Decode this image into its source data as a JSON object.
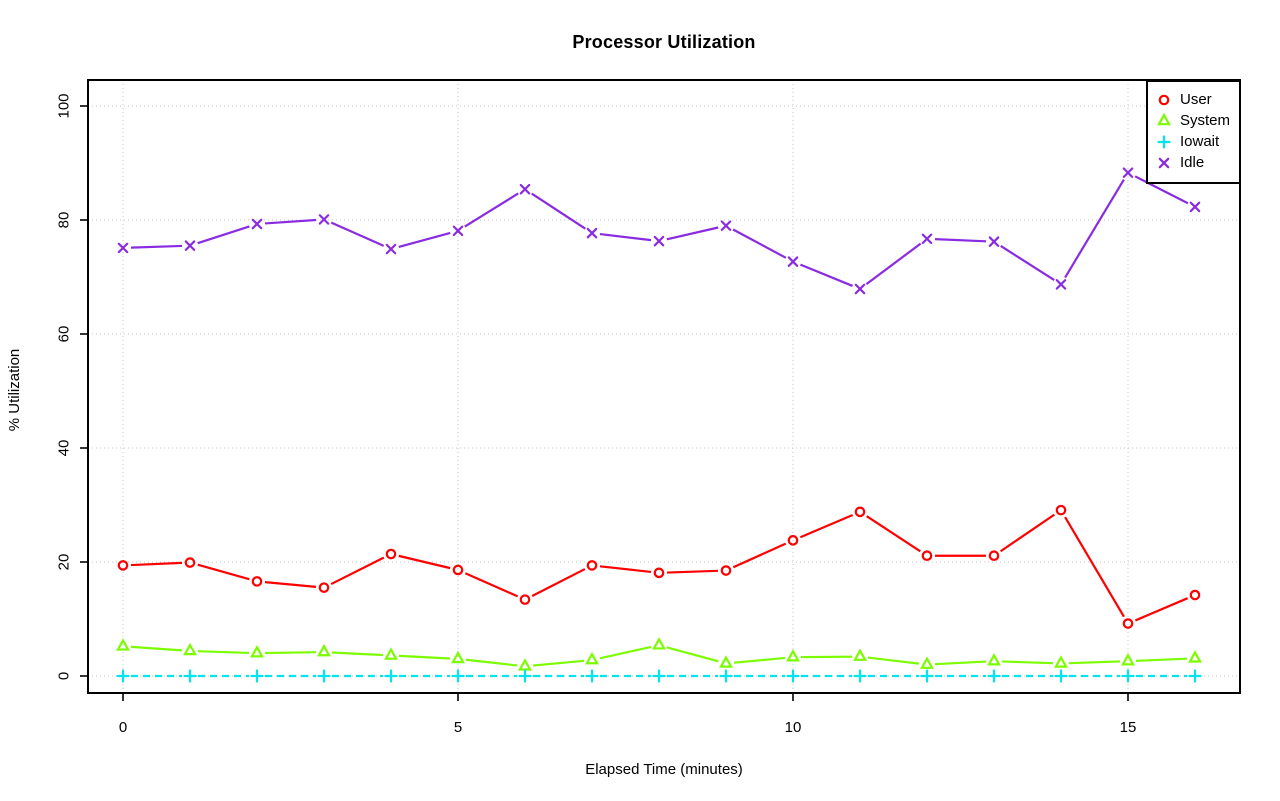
{
  "chart_data": {
    "type": "line",
    "title": "Processor Utilization",
    "xlabel": "Elapsed Time (minutes)",
    "ylabel": "% Utilization",
    "x": [
      0,
      1,
      2,
      3,
      4,
      5,
      6,
      7,
      8,
      9,
      10,
      11,
      12,
      13,
      14,
      15,
      16
    ],
    "x_ticks": [
      0,
      5,
      10,
      15
    ],
    "y_ticks": [
      0,
      20,
      40,
      60,
      80,
      100
    ],
    "xlim": [
      -0.6,
      16.6
    ],
    "ylim": [
      -3,
      104.5
    ],
    "grid": true,
    "grid_style": "dotted",
    "grid_color": "#c6c6c6",
    "legend_position": "top-right",
    "series": [
      {
        "name": "User",
        "color": "#ff0000",
        "marker": "circle",
        "line": "solid",
        "values": [
          19.4,
          19.9,
          16.6,
          15.5,
          21.4,
          18.6,
          13.4,
          19.4,
          18.1,
          18.5,
          23.8,
          28.8,
          21.1,
          21.1,
          29.1,
          9.2,
          14.2
        ]
      },
      {
        "name": "System",
        "color": "#7cfc00",
        "marker": "triangle",
        "line": "solid",
        "values": [
          5.2,
          4.4,
          4.0,
          4.2,
          3.6,
          3.0,
          1.7,
          2.8,
          5.4,
          2.2,
          3.3,
          3.4,
          2.0,
          2.6,
          2.2,
          2.6,
          3.1
        ]
      },
      {
        "name": "Iowait",
        "color": "#00e5ee",
        "marker": "plus",
        "line": "dashed",
        "values": [
          0,
          0,
          0,
          0,
          0,
          0,
          0,
          0,
          0,
          0,
          0,
          0,
          0,
          0,
          0,
          0,
          0
        ]
      },
      {
        "name": "Idle",
        "color": "#8a2be2",
        "marker": "x",
        "line": "solid",
        "values": [
          75.1,
          75.5,
          79.3,
          80.1,
          74.9,
          78.1,
          85.4,
          77.7,
          76.3,
          79.0,
          72.7,
          67.9,
          76.7,
          76.2,
          68.7,
          88.3,
          82.3
        ]
      }
    ]
  }
}
